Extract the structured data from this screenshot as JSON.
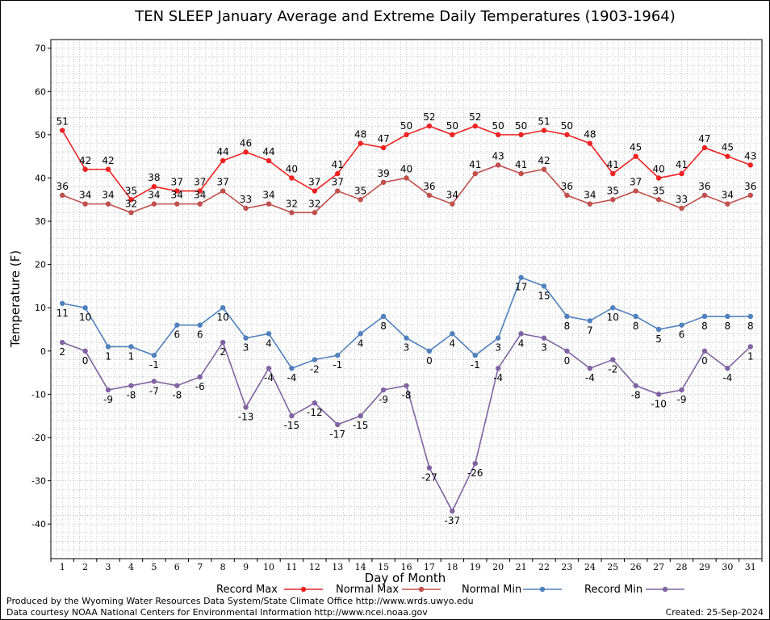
{
  "chart_data": {
    "type": "line",
    "title": "TEN SLEEP January Average and Extreme Daily Temperatures (1903-1964)",
    "xlabel": "Day of Month",
    "ylabel": "Temperature (F)",
    "ylim": [
      -48,
      72
    ],
    "yticks": [
      -40,
      -30,
      -20,
      -10,
      0,
      10,
      20,
      30,
      40,
      50,
      60,
      70
    ],
    "grid": true,
    "legend_position": "bottom",
    "x": [
      1,
      2,
      3,
      4,
      5,
      6,
      7,
      8,
      9,
      10,
      11,
      12,
      13,
      14,
      15,
      16,
      17,
      18,
      19,
      20,
      21,
      22,
      23,
      24,
      25,
      26,
      27,
      28,
      29,
      30,
      31
    ],
    "series": [
      {
        "name": "Record Max",
        "color": "#ee2222",
        "values": [
          51,
          42,
          42,
          35,
          38,
          37,
          37,
          44,
          46,
          44,
          40,
          37,
          41,
          48,
          47,
          50,
          52,
          50,
          52,
          50,
          50,
          51,
          50,
          48,
          41,
          45,
          40,
          41,
          47,
          45,
          43
        ]
      },
      {
        "name": "Normal Max",
        "color": "#c0504d",
        "values": [
          36,
          34,
          34,
          32,
          34,
          34,
          34,
          37,
          33,
          34,
          32,
          32,
          37,
          35,
          39,
          40,
          36,
          34,
          41,
          43,
          41,
          42,
          36,
          34,
          35,
          37,
          35,
          33,
          36,
          34,
          36
        ]
      },
      {
        "name": "Normal Min",
        "color": "#4f81bd",
        "values": [
          11,
          10,
          1,
          1,
          -1,
          6,
          6,
          10,
          3,
          4,
          -4,
          -2,
          -1,
          4,
          8,
          3,
          0,
          4,
          -1,
          3,
          17,
          15,
          8,
          7,
          10,
          8,
          5,
          6,
          8,
          8,
          8
        ]
      },
      {
        "name": "Record Min",
        "color": "#8064a2",
        "values": [
          2,
          0,
          -9,
          -8,
          -7,
          -8,
          -6,
          2,
          -13,
          -4,
          -15,
          -12,
          -17,
          -15,
          -9,
          -8,
          -27,
          -37,
          -26,
          -4,
          4,
          3,
          0,
          -4,
          -2,
          -8,
          -10,
          -9,
          0,
          -4,
          1
        ]
      }
    ]
  },
  "footer": {
    "produced_by": "Produced by the Wyoming Water Resources Data System/State Climate Office http://www.wrds.uwyo.edu",
    "courtesy": "Data courtesy NOAA National Centers for Environmental Information http://www.ncei.noaa.gov",
    "created": "Created: 25-Sep-2024"
  }
}
